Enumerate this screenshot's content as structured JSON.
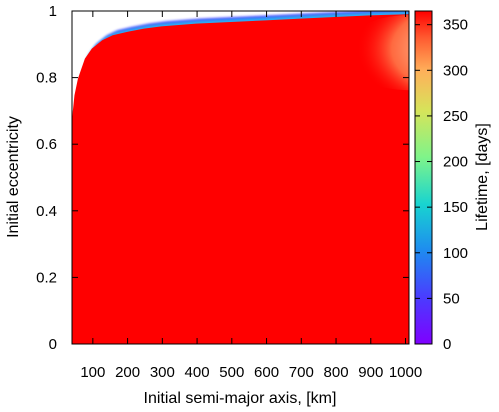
{
  "chart_data": {
    "type": "heatmap",
    "title": "",
    "xlabel": "Initial semi-major axis, [km]",
    "ylabel": "Initial eccentricity",
    "colorbar_label": "Lifetime, [days]",
    "xlim": [
      40,
      1010
    ],
    "ylim": [
      0,
      1
    ],
    "clim": [
      0,
      365
    ],
    "x_ticks": [
      100,
      200,
      300,
      400,
      500,
      600,
      700,
      800,
      900,
      1000
    ],
    "y_ticks": [
      0,
      0.2,
      0.4,
      0.6,
      0.8,
      1
    ],
    "colorbar_ticks": [
      0,
      50,
      100,
      150,
      200,
      250,
      300,
      350
    ],
    "colormap": "rainbow (purple → blue → cyan → green → yellow → orange → red)",
    "boundary": {
      "description": "Upper edge of the region with finite lifetime; above it orbits are not stable (blank)",
      "a_km": [
        40,
        45,
        50,
        60,
        70,
        80,
        100,
        130,
        160,
        200,
        250,
        300,
        400,
        500,
        600,
        700,
        800,
        900,
        1000
      ],
      "e": [
        0.6,
        0.7,
        0.75,
        0.8,
        0.83,
        0.86,
        0.89,
        0.915,
        0.93,
        0.94,
        0.95,
        0.957,
        0.965,
        0.97,
        0.975,
        0.98,
        0.985,
        0.99,
        0.993
      ]
    },
    "features": {
      "main_region_lifetime_days": 365,
      "boundary_band_lifetime_days": [
        0,
        150
      ],
      "reduced_lifetime_patch": {
        "a_km_range": [
          820,
          1010
        ],
        "e_range": [
          0.78,
          0.97
        ],
        "min_lifetime_days": 300
      }
    }
  }
}
